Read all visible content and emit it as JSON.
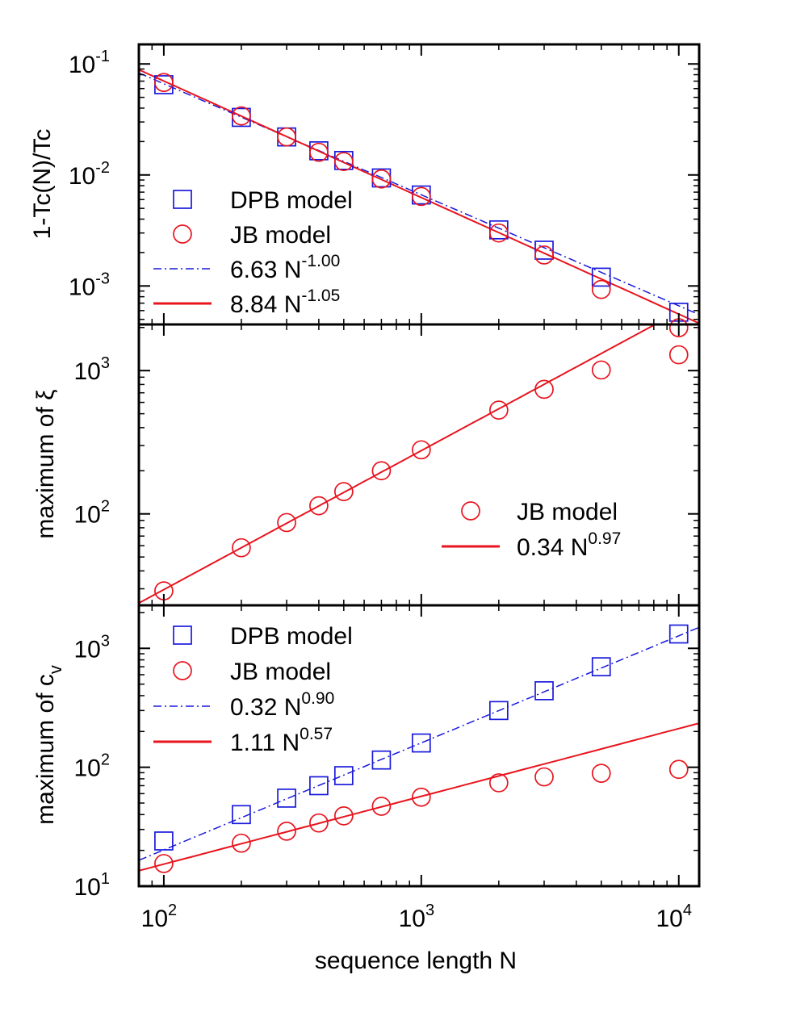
{
  "colors": {
    "dpb": "#1a1adc",
    "jb": "#e8141e"
  },
  "chart_data": [
    {
      "type": "scatter",
      "xscale": "log",
      "yscale": "log",
      "xlim": [
        80,
        12000
      ],
      "ylim": [
        0.00045,
        0.15
      ],
      "ylabel": "1-Tc(N)/Tc",
      "y_ticks": [
        {
          "base": "10",
          "exp": "-3",
          "v": 0.001
        },
        {
          "base": "10",
          "exp": "-2",
          "v": 0.01
        },
        {
          "base": "10",
          "exp": "-1",
          "v": 0.1
        }
      ],
      "series": [
        {
          "name": "DPB model",
          "kind": "markers",
          "marker": "square",
          "color": "dpb",
          "x": [
            100,
            200,
            300,
            400,
            500,
            700,
            1000,
            2000,
            3000,
            5000,
            10000
          ],
          "y": [
            0.065,
            0.033,
            0.022,
            0.0165,
            0.0135,
            0.0094,
            0.0066,
            0.0032,
            0.0021,
            0.0012,
            0.00058
          ]
        },
        {
          "name": "JB model",
          "kind": "markers",
          "marker": "circle",
          "color": "jb",
          "x": [
            100,
            200,
            300,
            400,
            500,
            700,
            1000,
            2000,
            3000,
            5000,
            10000
          ],
          "y": [
            0.068,
            0.034,
            0.022,
            0.016,
            0.0132,
            0.0092,
            0.0064,
            0.003,
            0.0019,
            0.00093,
            0.00042
          ]
        },
        {
          "name": "6.63 N",
          "exponent": "-1.00",
          "kind": "fit",
          "dash": "dashdot",
          "color": "dpb",
          "a": 6.63,
          "b": -1.0
        },
        {
          "name": "8.84 N",
          "exponent": "-1.05",
          "kind": "fit",
          "dash": "solid",
          "color": "jb",
          "a": 8.84,
          "b": -1.05
        }
      ]
    },
    {
      "type": "scatter",
      "xscale": "log",
      "yscale": "log",
      "xlim": [
        80,
        12000
      ],
      "ylim": [
        23,
        2100
      ],
      "ylabel": "maximum of  ξ",
      "y_ticks": [
        {
          "base": "10",
          "exp": "2",
          "v": 100
        },
        {
          "base": "10",
          "exp": "3",
          "v": 1000
        }
      ],
      "series": [
        {
          "name": "JB model",
          "kind": "markers",
          "marker": "circle",
          "color": "jb",
          "x": [
            100,
            200,
            300,
            400,
            500,
            700,
            1000,
            2000,
            3000,
            5000,
            10000
          ],
          "y": [
            29,
            58,
            87,
            114,
            143,
            200,
            280,
            530,
            740,
            1010,
            1290
          ]
        },
        {
          "name": "0.34 N",
          "exponent": "0.97",
          "kind": "fit",
          "dash": "solid",
          "color": "jb",
          "a": 0.34,
          "b": 0.97
        }
      ]
    },
    {
      "type": "scatter",
      "xscale": "log",
      "yscale": "log",
      "xlim": [
        80,
        12000
      ],
      "ylim": [
        10,
        2300
      ],
      "xlabel": "sequence length N",
      "ylabel": "maximum of c",
      "ylabel_sub": "v",
      "x_ticks": [
        {
          "base": "10",
          "exp": "2",
          "v": 100
        },
        {
          "base": "10",
          "exp": "3",
          "v": 1000
        },
        {
          "base": "10",
          "exp": "4",
          "v": 10000
        }
      ],
      "y_ticks": [
        {
          "base": "10",
          "exp": "1",
          "v": 10
        },
        {
          "base": "10",
          "exp": "2",
          "v": 100
        },
        {
          "base": "10",
          "exp": "3",
          "v": 1000
        }
      ],
      "series": [
        {
          "name": "DPB model",
          "kind": "markers",
          "marker": "square",
          "color": "dpb",
          "x": [
            100,
            200,
            300,
            400,
            500,
            700,
            1000,
            2000,
            3000,
            5000,
            10000
          ],
          "y": [
            24,
            40,
            55,
            70,
            85,
            115,
            160,
            300,
            440,
            700,
            1320
          ]
        },
        {
          "name": "JB model",
          "kind": "markers",
          "marker": "circle",
          "color": "jb",
          "x": [
            100,
            200,
            300,
            400,
            500,
            700,
            1000,
            2000,
            3000,
            5000,
            10000
          ],
          "y": [
            15.5,
            23,
            29,
            34,
            39,
            47,
            56,
            74,
            83,
            89,
            96
          ]
        },
        {
          "name": "0.32 N",
          "exponent": "0.90",
          "kind": "fit",
          "dash": "dashdot",
          "color": "dpb",
          "a": 0.32,
          "b": 0.9
        },
        {
          "name": "1.11 N",
          "exponent": "0.57",
          "kind": "fit",
          "dash": "solid",
          "color": "jb",
          "a": 1.11,
          "b": 0.57
        }
      ]
    }
  ]
}
